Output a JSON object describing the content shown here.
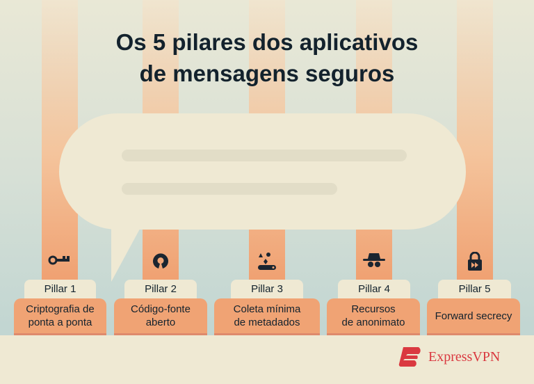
{
  "title_line1": "Os 5 pilares dos aplicativos",
  "title_line2": "de mensagens seguros",
  "pillars": [
    {
      "tab": "Pillar 1",
      "label_line1": "Criptografia de",
      "label_line2": "ponta a ponta",
      "icon": "key-icon"
    },
    {
      "tab": "Pillar 2",
      "label_line1": "Código-fonte",
      "label_line2": "aberto",
      "icon": "open-source-icon"
    },
    {
      "tab": "Pillar 3",
      "label_line1": "Coleta mínima",
      "label_line2": "de metadados",
      "icon": "data-shapes-icon"
    },
    {
      "tab": "Pillar 4",
      "label_line1": "Recursos",
      "label_line2": "de anonimato",
      "icon": "incognito-icon"
    },
    {
      "tab": "Pillar 5",
      "label_line1": "Forward secrecy",
      "label_line2": "",
      "icon": "lock-forward-icon"
    }
  ],
  "brand": {
    "name": "ExpressVPN",
    "color": "#da3940"
  },
  "colors": {
    "pillar": "#f0a374",
    "cream": "#efe9d3",
    "text": "#13222d"
  }
}
